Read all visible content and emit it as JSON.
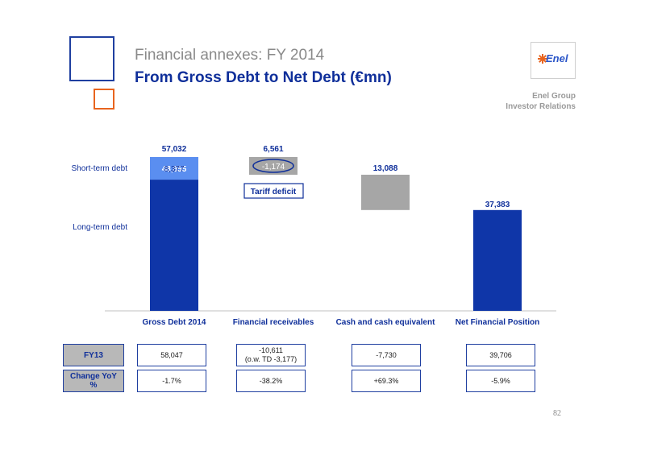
{
  "header": {
    "title": "Financial annexes: FY 2014",
    "subtitle": "From Gross Debt to Net Debt (€mn)",
    "logo_text": "Enel",
    "group_line1": "Enel Group",
    "group_line2": "Investor Relations"
  },
  "chart_data": {
    "type": "bar",
    "categories": [
      "Gross Debt 2014",
      "Financial receivables",
      "Cash and cash equivalent",
      "Net Financial Position"
    ],
    "series": [
      {
        "name": "Long-term debt",
        "values": [
          48655,
          null,
          null,
          null
        ]
      },
      {
        "name": "Short-term debt",
        "values": [
          8377,
          null,
          null,
          null
        ]
      }
    ],
    "waterfall": [
      {
        "category": "Gross Debt 2014",
        "total": 57032,
        "total_label": "57,032",
        "segments": [
          {
            "name": "Long-term debt",
            "value": 48655,
            "label": "48,655"
          },
          {
            "name": "Short-term debt",
            "value": 8377,
            "label": "8,377"
          }
        ]
      },
      {
        "category": "Financial receivables",
        "from": 57032,
        "to": 50471,
        "value": 6561,
        "label": "6,561",
        "inner_value": -1174,
        "inner_label": "-1,174",
        "callout": "Tariff deficit"
      },
      {
        "category": "Cash and cash equivalent",
        "from": 50471,
        "to": 37383,
        "value": 13088,
        "label": "13,088"
      },
      {
        "category": "Net Financial Position",
        "total": 37383,
        "total_label": "37,383"
      }
    ],
    "row_labels": [
      "Short-term debt",
      "Long-term debt"
    ],
    "ylim": [
      0,
      57032
    ],
    "colors": {
      "long_term": "#0f36a8",
      "short_term": "#5a8ef0",
      "reduction": "#a6a6a6",
      "axis": "#c0c0c0",
      "label_text": "#0f2f9a"
    }
  },
  "table": {
    "rows": [
      {
        "label": "FY13",
        "cells": [
          "58,047",
          "-10,611\n(o.w. TD -3,177)",
          "-7,730",
          "39,706"
        ]
      },
      {
        "label": "Change YoY\n%",
        "cells": [
          "-1.7%",
          "-38.2%",
          "+69.3%",
          "-5.9%"
        ]
      }
    ]
  },
  "footer": {
    "page_number": "82"
  }
}
